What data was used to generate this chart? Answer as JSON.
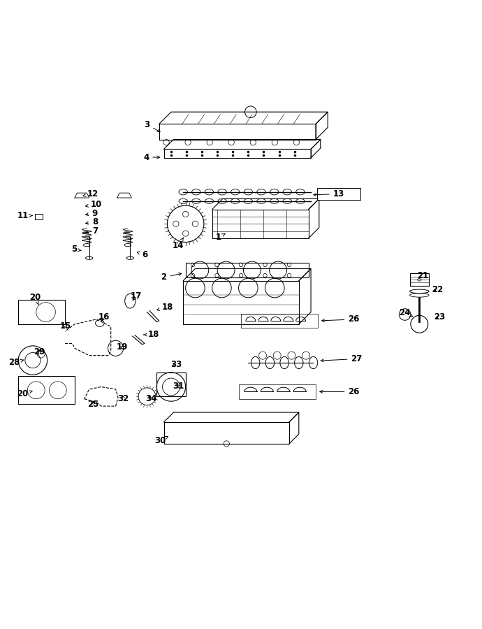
{
  "title": "",
  "bg_color": "#ffffff",
  "line_color": "#000000",
  "label_color": "#000000",
  "fig_width": 6.9,
  "fig_height": 9.0,
  "dpi": 100
}
